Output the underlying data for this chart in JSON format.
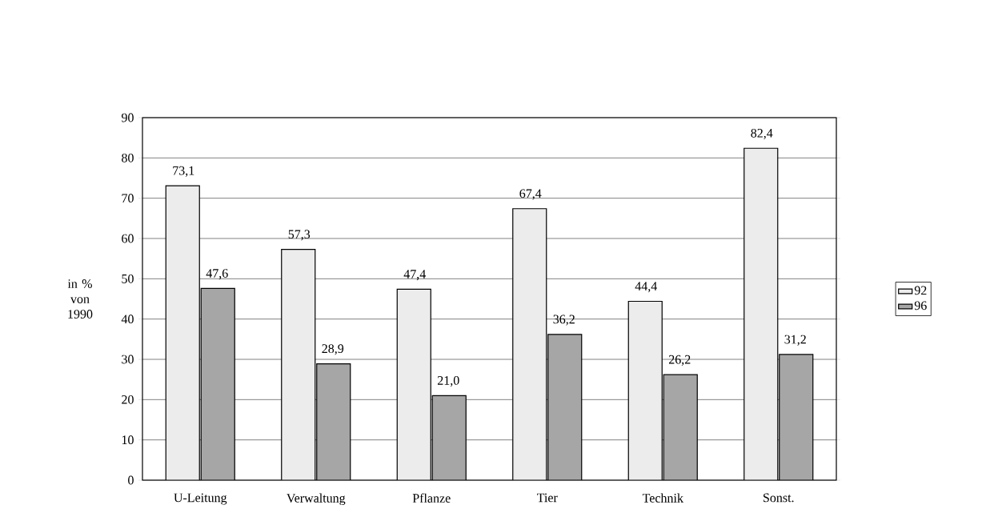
{
  "chart_data": {
    "type": "bar",
    "ylabel": "in % von 1990",
    "categories": [
      "U-Leitung",
      "Verwaltung",
      "Pflanze",
      "Tier",
      "Technik",
      "Sonst."
    ],
    "series": [
      {
        "name": "92",
        "color": "#ececec",
        "values": [
          73.1,
          57.3,
          47.4,
          67.4,
          44.4,
          82.4
        ],
        "value_labels": [
          "73,1",
          "57,3",
          "47,4",
          "67,4",
          "44,4",
          "82,4"
        ]
      },
      {
        "name": "96",
        "color": "#a6a6a6",
        "values": [
          47.6,
          28.9,
          21.0,
          36.2,
          26.2,
          31.2
        ],
        "value_labels": [
          "47,6",
          "28,9",
          "21,0",
          "36,2",
          "26,2",
          "31,2"
        ]
      }
    ],
    "ylim": [
      0,
      90
    ],
    "yticks": [
      0,
      10,
      20,
      30,
      40,
      50,
      60,
      70,
      80,
      90
    ],
    "grid": "y",
    "legend": "right"
  }
}
